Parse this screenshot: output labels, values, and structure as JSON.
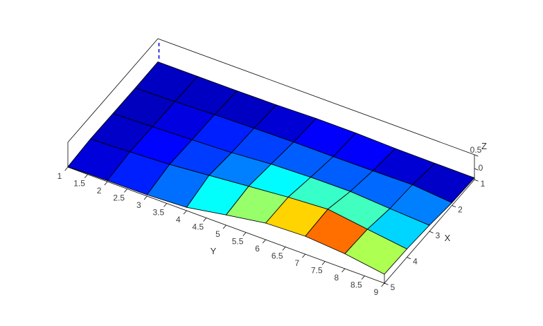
{
  "background": "#ffffff",
  "chart_data": {
    "type": "surface",
    "title": "",
    "xlabel": "X",
    "ylabel": "Y",
    "zlabel": "Z",
    "x": [
      1,
      2,
      3,
      4,
      5
    ],
    "y": [
      1,
      2,
      3,
      4,
      5,
      6,
      7,
      8,
      9
    ],
    "z_dims": "rows are X=1..5, columns are Y=1..9",
    "z": [
      [
        -0.34,
        -0.34,
        -0.34,
        -0.325,
        -0.29,
        -0.29,
        -0.325,
        -0.335,
        -0.34
      ],
      [
        -0.345,
        -0.315,
        -0.26,
        -0.23,
        -0.205,
        -0.205,
        -0.195,
        -0.175,
        -0.3
      ],
      [
        -0.335,
        -0.285,
        -0.235,
        -0.175,
        -0.065,
        -0.015,
        -0.005,
        -0.1,
        -0.18
      ],
      [
        -0.32,
        -0.26,
        -0.19,
        -0.06,
        0.07,
        0.2,
        0.29,
        0.09,
        -0.1
      ],
      [
        -0.385,
        -0.36,
        -0.35,
        -0.28,
        -0.03,
        0.2,
        0.25,
        0.14,
        -0.075
      ]
    ],
    "x_tick_labels": [
      "1",
      "2",
      "3",
      "4",
      "5"
    ],
    "y_tick_labels": [
      "1",
      "1.5",
      "2",
      "2.5",
      "3",
      "3.5",
      "4",
      "4.5",
      "5",
      "5.5",
      "6",
      "6.5",
      "7",
      "7.5",
      "8",
      "8.5",
      "9"
    ],
    "z_tick_labels": [
      "0",
      "0.5"
    ],
    "z_tick_values": [
      0,
      0.5
    ],
    "zlim": [
      -0.4,
      0.5
    ],
    "caxis": [
      -0.4,
      0.5
    ],
    "colormap": "jet",
    "shading": "flat",
    "grid": false,
    "legend": "none",
    "edge_color": "#000000",
    "axis_color": "#000000",
    "tick_label_color": "#3d3d3d",
    "dashed_marker_color": "#0000f0"
  }
}
